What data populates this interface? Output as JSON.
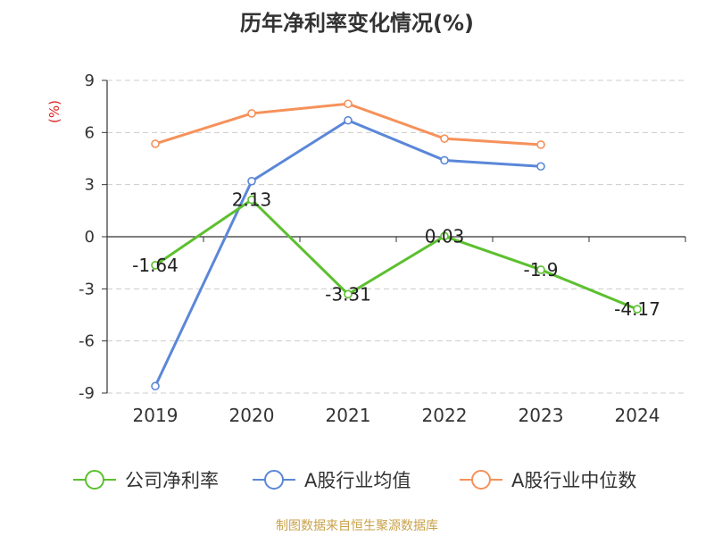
{
  "chart_data": {
    "type": "line",
    "title": "历年净利率变化情况(%)",
    "ylabel": "(%)",
    "xlabel": "",
    "categories": [
      "2019",
      "2020",
      "2021",
      "2022",
      "2023",
      "2024"
    ],
    "ylim": [
      -9,
      9
    ],
    "yticks": [
      9,
      6,
      3,
      0,
      -3,
      -6,
      -9
    ],
    "grid": true,
    "legend_position": "bottom",
    "series": [
      {
        "name": "公司净利率",
        "color": "#5cc02f",
        "values": [
          -1.64,
          2.13,
          -3.31,
          0.03,
          -1.9,
          -4.17
        ],
        "labels": [
          "-1.64",
          "2.13",
          "-3.31",
          "0.03",
          "-1.9",
          "-4.17"
        ]
      },
      {
        "name": "A股行业均值",
        "color": "#5b87d8",
        "values": [
          -8.6,
          3.2,
          6.7,
          4.4,
          4.05,
          null
        ]
      },
      {
        "name": "A股行业中位数",
        "color": "#f6915a",
        "values": [
          5.35,
          7.1,
          7.65,
          5.65,
          5.3,
          null
        ]
      }
    ]
  },
  "source": "制图数据来自恒生聚源数据库"
}
